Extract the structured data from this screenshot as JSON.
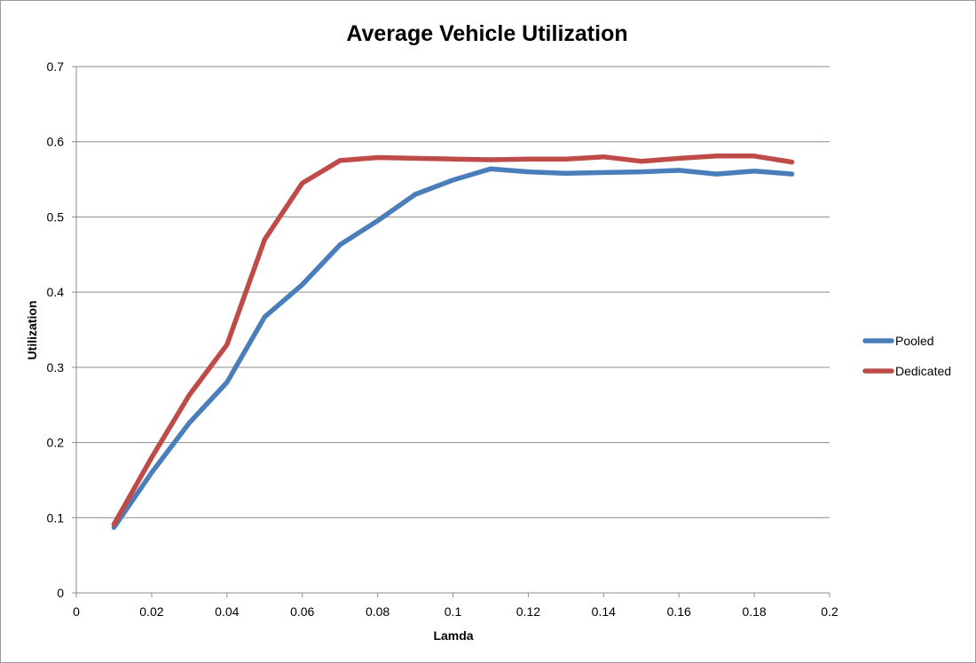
{
  "chart_data": {
    "type": "line",
    "title": "Average Vehicle Utilization",
    "xlabel": "Lamda",
    "ylabel": "Utilization",
    "xlim": [
      0,
      0.2
    ],
    "ylim": [
      0,
      0.7
    ],
    "x_ticks": [
      "0",
      "0.02",
      "0.04",
      "0.06",
      "0.08",
      "0.1",
      "0.12",
      "0.14",
      "0.16",
      "0.18",
      "0.2"
    ],
    "y_ticks": [
      "0",
      "0.1",
      "0.2",
      "0.3",
      "0.4",
      "0.5",
      "0.6",
      "0.7"
    ],
    "grid": "horizontal",
    "legend_position": "right",
    "x": [
      0.01,
      0.02,
      0.03,
      0.04,
      0.05,
      0.06,
      0.07,
      0.08,
      0.09,
      0.1,
      0.11,
      0.12,
      0.13,
      0.14,
      0.15,
      0.16,
      0.17,
      0.18,
      0.19
    ],
    "series": [
      {
        "name": "Pooled",
        "color": "#4a7ebb",
        "values": [
          0.087,
          0.16,
          0.226,
          0.28,
          0.367,
          0.41,
          0.463,
          0.495,
          0.53,
          0.549,
          0.564,
          0.56,
          0.558,
          0.559,
          0.56,
          0.562,
          0.557,
          0.561,
          0.557
        ]
      },
      {
        "name": "Dedicated",
        "color": "#be4b48",
        "values": [
          0.091,
          0.18,
          0.263,
          0.33,
          0.47,
          0.545,
          0.575,
          0.579,
          0.578,
          0.577,
          0.576,
          0.577,
          0.577,
          0.58,
          0.574,
          0.578,
          0.581,
          0.581,
          0.573
        ]
      }
    ]
  }
}
